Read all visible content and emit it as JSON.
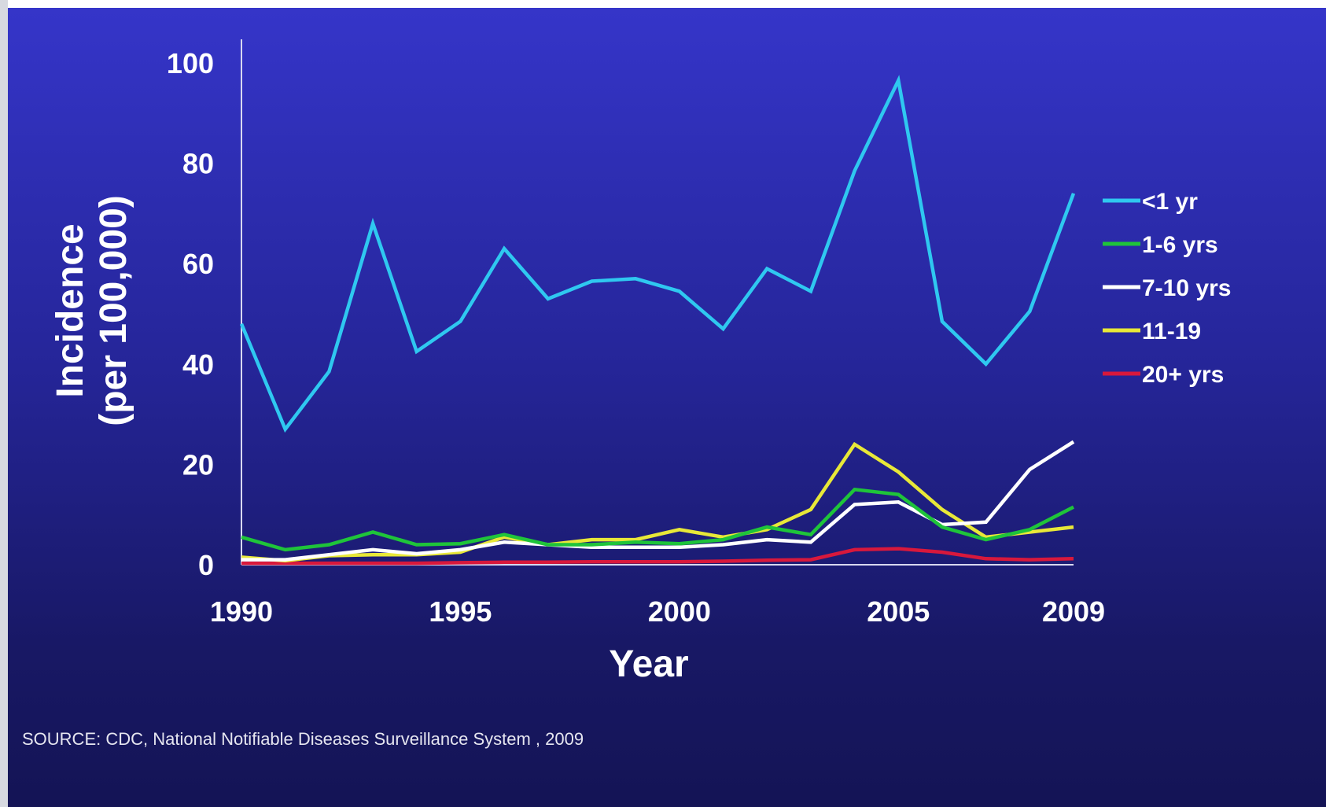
{
  "chart_data": {
    "type": "line",
    "xlabel": "Year",
    "ylabel_lines": [
      "Incidence",
      "(per 100,000)"
    ],
    "xlim": [
      1990,
      2009
    ],
    "ylim": [
      0,
      100
    ],
    "x_ticks": [
      1990,
      1995,
      2000,
      2005,
      2009
    ],
    "y_ticks": [
      0,
      20,
      40,
      60,
      80,
      100
    ],
    "grid": false,
    "legend_position": "right",
    "x": [
      1990,
      1991,
      1992,
      1993,
      1994,
      1995,
      1996,
      1997,
      1998,
      1999,
      2000,
      2001,
      2002,
      2003,
      2004,
      2005,
      2006,
      2007,
      2008,
      2009
    ],
    "series": [
      {
        "name": "<1 yr",
        "color": "#2fc8f0",
        "values": [
          48,
          27,
          38.5,
          68,
          42.5,
          48.5,
          63,
          53,
          56.5,
          57,
          54.5,
          47,
          59,
          54.5,
          78.5,
          96.5,
          48.5,
          40,
          50.5,
          74
        ]
      },
      {
        "name": "1-6 yrs",
        "color": "#1fc43a",
        "values": [
          5.5,
          3,
          4,
          6.5,
          4,
          4.2,
          6,
          4,
          4,
          4.5,
          4.2,
          5,
          7.5,
          6,
          15,
          14,
          7.5,
          5,
          7,
          11.5
        ]
      },
      {
        "name": "7-10 yrs",
        "color": "#ffffff",
        "values": [
          1,
          1,
          2,
          3,
          2.2,
          3,
          4.5,
          4,
          3.5,
          3.5,
          3.5,
          4,
          5,
          4.5,
          12,
          12.5,
          8,
          8.5,
          19,
          24.5
        ]
      },
      {
        "name": "11-19",
        "color": "#e8e838",
        "values": [
          1.5,
          0.8,
          1.8,
          2,
          2,
          2.5,
          5.5,
          4,
          5,
          5,
          7,
          5.5,
          7,
          11,
          24,
          18.5,
          11,
          5.5,
          6.5,
          7.5
        ]
      },
      {
        "name": "20+ yrs",
        "color": "#d8183c",
        "values": [
          0.3,
          0.3,
          0.3,
          0.3,
          0.3,
          0.4,
          0.5,
          0.5,
          0.6,
          0.6,
          0.6,
          0.7,
          0.9,
          1,
          3,
          3.2,
          2.5,
          1.2,
          1,
          1.2
        ]
      }
    ]
  },
  "footer": {
    "source": "SOURCE: CDC, National Notifiable Diseases Surveillance System , 2009"
  }
}
